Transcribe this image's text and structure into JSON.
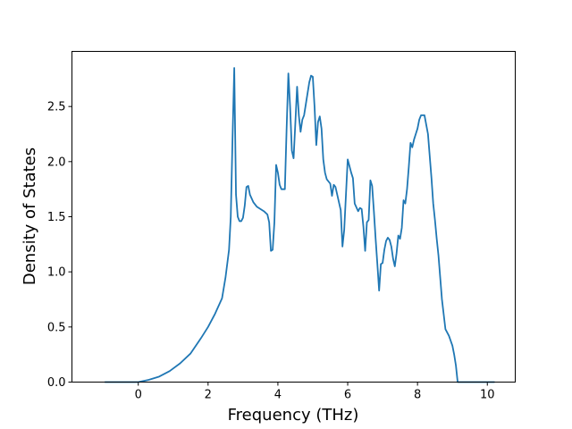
{
  "chart_data": {
    "type": "line",
    "title": "",
    "xlabel": "Frequency (THz)",
    "ylabel": "Density of States",
    "xlim": [
      -1.9,
      10.8
    ],
    "ylim": [
      0,
      3.0
    ],
    "xticks": [
      0,
      2,
      4,
      6,
      8,
      10
    ],
    "yticks": [
      0.0,
      0.5,
      1.0,
      1.5,
      2.0,
      2.5
    ],
    "xtick_labels": [
      "0",
      "2",
      "4",
      "6",
      "8",
      "10"
    ],
    "ytick_labels": [
      "0.0",
      "0.5",
      "1.0",
      "1.5",
      "2.0",
      "2.5"
    ],
    "grid": false,
    "line_color": "#1f77b4",
    "series": [
      {
        "x": [
          -0.95,
          0.0,
          0.3,
          0.6,
          0.9,
          1.2,
          1.5,
          1.8,
          2.0,
          2.2,
          2.4,
          2.5,
          2.6,
          2.65,
          2.7,
          2.75,
          2.8,
          2.85,
          2.9,
          2.95,
          3.0,
          3.05,
          3.1,
          3.15,
          3.2,
          3.3,
          3.4,
          3.6,
          3.7,
          3.75,
          3.8,
          3.85,
          3.9,
          3.95,
          4.0,
          4.05,
          4.1,
          4.2,
          4.25,
          4.3,
          4.35,
          4.4,
          4.45,
          4.5,
          4.55,
          4.6,
          4.65,
          4.7,
          4.75,
          4.8,
          4.9,
          4.95,
          5.0,
          5.05,
          5.1,
          5.15,
          5.2,
          5.25,
          5.3,
          5.35,
          5.4,
          5.5,
          5.55,
          5.6,
          5.65,
          5.7,
          5.8,
          5.85,
          5.9,
          6.0,
          6.05,
          6.1,
          6.15,
          6.2,
          6.3,
          6.35,
          6.4,
          6.45,
          6.5,
          6.55,
          6.6,
          6.65,
          6.7,
          6.75,
          6.8,
          6.85,
          6.9,
          6.95,
          7.0,
          7.05,
          7.1,
          7.15,
          7.2,
          7.25,
          7.3,
          7.35,
          7.4,
          7.45,
          7.5,
          7.55,
          7.6,
          7.65,
          7.7,
          7.75,
          7.8,
          7.85,
          7.9,
          7.95,
          8.0,
          8.05,
          8.1,
          8.2,
          8.3,
          8.4,
          8.45,
          8.5,
          8.55,
          8.6,
          8.65,
          8.7,
          8.8,
          8.9,
          9.0,
          9.05,
          9.1,
          9.15,
          9.2,
          9.25,
          9.3,
          9.5,
          9.8,
          10.2
        ],
        "y": [
          0.0,
          0.0,
          0.02,
          0.05,
          0.1,
          0.17,
          0.26,
          0.4,
          0.5,
          0.62,
          0.76,
          0.95,
          1.2,
          1.5,
          2.2,
          2.85,
          1.7,
          1.5,
          1.46,
          1.46,
          1.49,
          1.6,
          1.77,
          1.78,
          1.7,
          1.63,
          1.59,
          1.55,
          1.52,
          1.45,
          1.19,
          1.2,
          1.45,
          1.97,
          1.9,
          1.79,
          1.75,
          1.75,
          2.3,
          2.8,
          2.5,
          2.1,
          2.03,
          2.35,
          2.68,
          2.42,
          2.27,
          2.38,
          2.42,
          2.52,
          2.72,
          2.78,
          2.77,
          2.5,
          2.15,
          2.36,
          2.41,
          2.3,
          2.02,
          1.9,
          1.84,
          1.8,
          1.69,
          1.79,
          1.77,
          1.7,
          1.56,
          1.23,
          1.38,
          2.02,
          1.96,
          1.9,
          1.85,
          1.62,
          1.55,
          1.58,
          1.57,
          1.41,
          1.19,
          1.45,
          1.47,
          1.83,
          1.78,
          1.55,
          1.3,
          1.07,
          0.83,
          1.07,
          1.08,
          1.2,
          1.28,
          1.31,
          1.29,
          1.23,
          1.12,
          1.05,
          1.17,
          1.33,
          1.3,
          1.4,
          1.65,
          1.62,
          1.75,
          1.95,
          2.17,
          2.13,
          2.2,
          2.25,
          2.3,
          2.38,
          2.42,
          2.42,
          2.25,
          1.85,
          1.62,
          1.47,
          1.3,
          1.15,
          0.95,
          0.75,
          0.48,
          0.42,
          0.33,
          0.25,
          0.15,
          0.0,
          0.0,
          0.0,
          0.0,
          0.0,
          0.0,
          0.0
        ]
      }
    ]
  }
}
